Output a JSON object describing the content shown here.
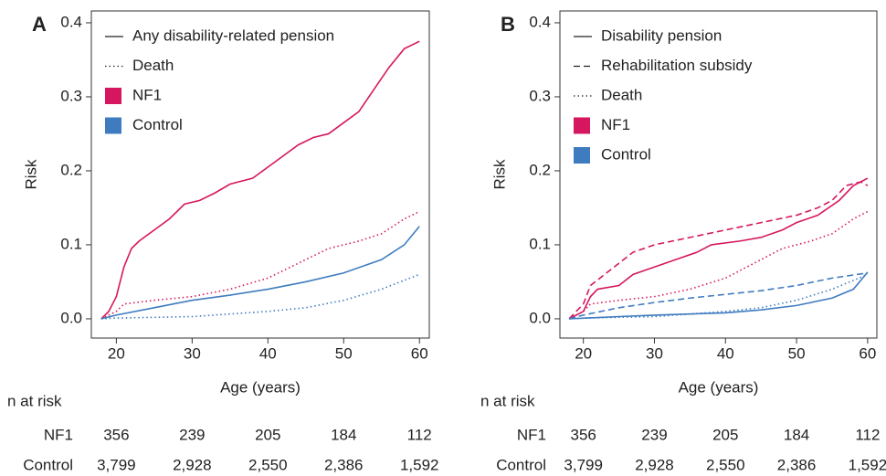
{
  "chart_data": [
    {
      "type": "line",
      "panel": "A",
      "x_label": "Age (years)",
      "y_label": "Risk",
      "xlim": [
        16.7,
        61.3
      ],
      "ylim": [
        -0.026,
        0.416
      ],
      "xticks": [
        20,
        30,
        40,
        50,
        60
      ],
      "yticks": [
        0.0,
        0.1,
        0.2,
        0.3,
        0.4
      ],
      "legend": [
        {
          "name": "Any disability-related pension",
          "dash": "solid"
        },
        {
          "name": "Death",
          "dash": "dotted"
        },
        {
          "name": "NF1",
          "color": "#d6175f"
        },
        {
          "name": "Control",
          "color": "#3f7cbf"
        }
      ],
      "series": [
        {
          "color": "#d6175f",
          "dash": "solid",
          "x": [
            18,
            19,
            20,
            21,
            22,
            23,
            25,
            27,
            29,
            31,
            33,
            35,
            38,
            40,
            42,
            44,
            46,
            48,
            50,
            52,
            54,
            56,
            58,
            60
          ],
          "values": [
            0,
            0.01,
            0.03,
            0.07,
            0.095,
            0.105,
            0.12,
            0.135,
            0.155,
            0.16,
            0.17,
            0.182,
            0.19,
            0.205,
            0.22,
            0.235,
            0.245,
            0.25,
            0.265,
            0.28,
            0.31,
            0.34,
            0.365,
            0.375
          ]
        },
        {
          "color": "#d6175f",
          "dash": "dotted",
          "x": [
            18,
            20,
            21,
            25,
            30,
            35,
            40,
            44,
            48,
            52,
            55,
            58,
            60
          ],
          "values": [
            0,
            0.01,
            0.02,
            0.025,
            0.03,
            0.04,
            0.055,
            0.075,
            0.095,
            0.105,
            0.115,
            0.135,
            0.145
          ]
        },
        {
          "color": "#3f7cbf",
          "dash": "solid",
          "x": [
            18,
            20,
            25,
            30,
            35,
            40,
            45,
            50,
            55,
            58,
            60
          ],
          "values": [
            0,
            0.005,
            0.015,
            0.025,
            0.032,
            0.04,
            0.05,
            0.062,
            0.08,
            0.1,
            0.125
          ]
        },
        {
          "color": "#3f7cbf",
          "dash": "dotted",
          "x": [
            18,
            20,
            30,
            40,
            45,
            50,
            55,
            60
          ],
          "values": [
            0,
            0.001,
            0.003,
            0.01,
            0.015,
            0.025,
            0.04,
            0.06
          ]
        }
      ],
      "risk_table": {
        "title": "n at risk",
        "rows": [
          {
            "label": "NF1",
            "values": [
              356,
              239,
              205,
              184,
              112
            ]
          },
          {
            "label": "Control",
            "values": [
              3799,
              2928,
              2550,
              2386,
              1592
            ],
            "value_labels": [
              "3,799",
              "2,928",
              "2,550",
              "2,386",
              "1,592"
            ]
          }
        ]
      }
    },
    {
      "type": "line",
      "panel": "B",
      "x_label": "Age (years)",
      "y_label": "Risk",
      "xlim": [
        16.7,
        61.3
      ],
      "ylim": [
        -0.026,
        0.416
      ],
      "xticks": [
        20,
        30,
        40,
        50,
        60
      ],
      "yticks": [
        0.0,
        0.1,
        0.2,
        0.3,
        0.4
      ],
      "legend": [
        {
          "name": "Disability pension",
          "dash": "solid"
        },
        {
          "name": "Rehabilitation subsidy",
          "dash": "dashed"
        },
        {
          "name": "Death",
          "dash": "dotted"
        },
        {
          "name": "NF1",
          "color": "#d6175f"
        },
        {
          "name": "Control",
          "color": "#3f7cbf"
        }
      ],
      "series": [
        {
          "color": "#d6175f",
          "dash": "solid",
          "x": [
            18,
            20,
            21,
            22,
            25,
            27,
            30,
            33,
            36,
            38,
            42,
            45,
            48,
            50,
            53,
            56,
            58,
            60
          ],
          "values": [
            0,
            0.01,
            0.03,
            0.04,
            0.045,
            0.06,
            0.07,
            0.08,
            0.09,
            0.1,
            0.105,
            0.11,
            0.12,
            0.13,
            0.14,
            0.16,
            0.18,
            0.19
          ]
        },
        {
          "color": "#d6175f",
          "dash": "dashed",
          "x": [
            18,
            20,
            21,
            23,
            25,
            27,
            30,
            35,
            40,
            45,
            50,
            53,
            55,
            57,
            59,
            60
          ],
          "values": [
            0,
            0.02,
            0.045,
            0.06,
            0.075,
            0.09,
            0.1,
            0.11,
            0.12,
            0.13,
            0.14,
            0.15,
            0.16,
            0.18,
            0.185,
            0.18
          ]
        },
        {
          "color": "#d6175f",
          "dash": "dotted",
          "x": [
            18,
            20,
            21,
            25,
            30,
            35,
            40,
            44,
            48,
            52,
            55,
            58,
            60
          ],
          "values": [
            0,
            0.01,
            0.02,
            0.025,
            0.03,
            0.04,
            0.055,
            0.075,
            0.095,
            0.105,
            0.115,
            0.135,
            0.145
          ]
        },
        {
          "color": "#3f7cbf",
          "dash": "solid",
          "x": [
            18,
            25,
            30,
            40,
            45,
            50,
            55,
            58,
            60
          ],
          "values": [
            0,
            0.003,
            0.005,
            0.008,
            0.012,
            0.018,
            0.028,
            0.04,
            0.063
          ]
        },
        {
          "color": "#3f7cbf",
          "dash": "dashed",
          "x": [
            18,
            20,
            25,
            30,
            35,
            40,
            45,
            50,
            55,
            60
          ],
          "values": [
            0,
            0.005,
            0.015,
            0.022,
            0.028,
            0.033,
            0.038,
            0.045,
            0.055,
            0.062
          ]
        },
        {
          "color": "#3f7cbf",
          "dash": "dotted",
          "x": [
            18,
            20,
            30,
            40,
            45,
            50,
            55,
            60
          ],
          "values": [
            0,
            0.001,
            0.003,
            0.01,
            0.015,
            0.025,
            0.04,
            0.06
          ]
        }
      ],
      "risk_table": {
        "title": "n at risk",
        "rows": [
          {
            "label": "NF1",
            "values": [
              356,
              239,
              205,
              184,
              112
            ]
          },
          {
            "label": "Control",
            "values": [
              3799,
              2928,
              2550,
              2386,
              1592
            ],
            "value_labels": [
              "3,799",
              "2,928",
              "2,550",
              "2,386",
              "1,592"
            ]
          }
        ]
      }
    }
  ]
}
